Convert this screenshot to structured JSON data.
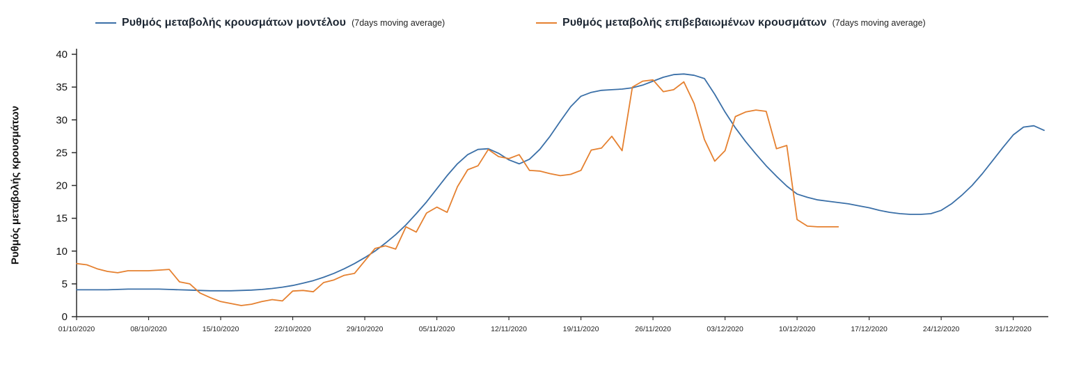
{
  "page": {
    "background": "#ffffff"
  },
  "legend": [
    {
      "key": "model",
      "label": "Ρυθμός μεταβολής κρουσμάτων μοντέλου",
      "suffix": "(7days moving average)",
      "color": "#3a6fa7"
    },
    {
      "key": "confirmed",
      "label": "Ρυθμός μεταβολής επιβεβαιωμένων κρουσμάτων",
      "suffix": "(7days moving average)",
      "color": "#e5802f"
    }
  ],
  "chart_data": {
    "type": "line",
    "title": "",
    "xlabel": "",
    "ylabel": "Ρυθμός μεταβολής κρουσμάτων",
    "ylim": [
      0,
      40
    ],
    "yticks": [
      0,
      5,
      10,
      15,
      20,
      25,
      30,
      35,
      40
    ],
    "grid": false,
    "legend_position": "top",
    "x_unit": "days since 01/10/2020",
    "xticks": [
      {
        "day": 0,
        "label": "01/10/2020"
      },
      {
        "day": 7,
        "label": "08/10/2020"
      },
      {
        "day": 14,
        "label": "15/10/2020"
      },
      {
        "day": 21,
        "label": "22/10/2020"
      },
      {
        "day": 28,
        "label": "29/10/2020"
      },
      {
        "day": 35,
        "label": "05/11/2020"
      },
      {
        "day": 42,
        "label": "12/11/2020"
      },
      {
        "day": 49,
        "label": "19/11/2020"
      },
      {
        "day": 56,
        "label": "26/11/2020"
      },
      {
        "day": 63,
        "label": "03/12/2020"
      },
      {
        "day": 70,
        "label": "10/12/2020"
      },
      {
        "day": 77,
        "label": "17/12/2020"
      },
      {
        "day": 84,
        "label": "24/12/2020"
      },
      {
        "day": 91,
        "label": "31/12/2020"
      }
    ],
    "series": [
      {
        "key": "model",
        "name": "Ρυθμός μεταβολής κρουσμάτων μοντέλου (7days moving average)",
        "color": "#3a6fa7",
        "start_day": 0,
        "values": [
          4.1,
          4.1,
          4.1,
          4.1,
          4.15,
          4.2,
          4.2,
          4.2,
          4.2,
          4.15,
          4.1,
          4.05,
          4.0,
          3.95,
          3.95,
          3.95,
          4.0,
          4.05,
          4.15,
          4.3,
          4.5,
          4.75,
          5.1,
          5.5,
          6.0,
          6.6,
          7.3,
          8.1,
          9.0,
          10.0,
          11.2,
          12.5,
          14.0,
          15.7,
          17.5,
          19.5,
          21.5,
          23.3,
          24.7,
          25.5,
          25.6,
          24.9,
          23.9,
          23.3,
          24.0,
          25.5,
          27.5,
          29.8,
          32.0,
          33.6,
          34.2,
          34.5,
          34.6,
          34.7,
          34.9,
          35.3,
          35.9,
          36.5,
          36.9,
          37.0,
          36.8,
          36.3,
          33.9,
          31.2,
          28.8,
          26.7,
          24.8,
          23.0,
          21.4,
          19.9,
          18.7,
          18.2,
          17.8,
          17.6,
          17.4,
          17.2,
          16.9,
          16.6,
          16.2,
          15.9,
          15.7,
          15.6,
          15.6,
          15.7,
          16.2,
          17.2,
          18.5,
          20.0,
          21.8,
          23.8,
          25.8,
          27.7,
          28.9,
          29.1,
          28.4
        ]
      },
      {
        "key": "confirmed",
        "name": "Ρυθμός μεταβολής επιβεβαιωμένων κρουσμάτων (7days moving average)",
        "color": "#e5802f",
        "start_day": 0,
        "values": [
          8.1,
          7.9,
          7.3,
          6.9,
          6.7,
          7.0,
          7.0,
          7.0,
          7.1,
          7.2,
          5.3,
          5.0,
          3.6,
          2.9,
          2.3,
          2.0,
          1.7,
          1.9,
          2.3,
          2.6,
          2.4,
          3.9,
          4.0,
          3.8,
          5.2,
          5.6,
          6.3,
          6.6,
          8.5,
          10.4,
          10.8,
          10.3,
          13.7,
          12.9,
          15.8,
          16.7,
          15.9,
          19.8,
          22.4,
          23.0,
          25.5,
          24.4,
          24.1,
          24.7,
          22.3,
          22.2,
          21.8,
          21.5,
          21.7,
          22.3,
          25.4,
          25.7,
          27.5,
          25.3,
          35.0,
          35.9,
          36.1,
          34.3,
          34.6,
          35.8,
          32.5,
          27.0,
          23.7,
          25.3,
          30.5,
          31.2,
          31.5,
          31.3,
          25.6,
          26.1,
          14.8,
          13.8,
          13.7,
          13.7,
          13.7
        ]
      }
    ]
  }
}
